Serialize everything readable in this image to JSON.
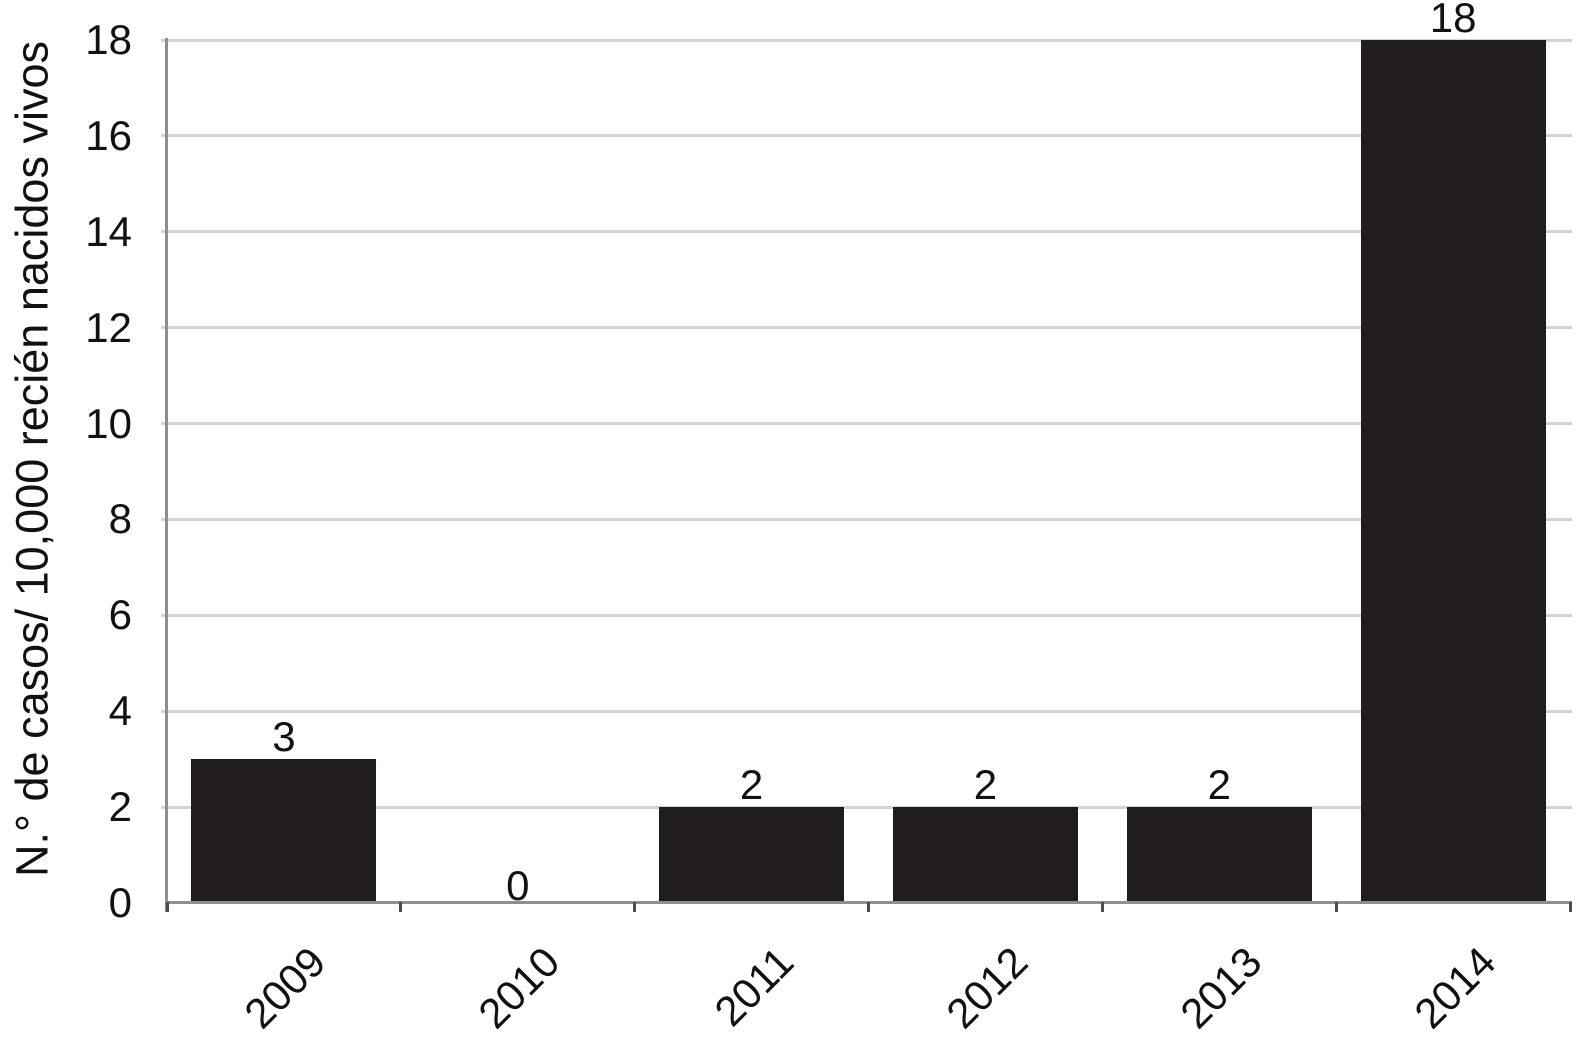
{
  "chart_data": {
    "type": "bar",
    "categories": [
      "2009",
      "2010",
      "2011",
      "2012",
      "2013",
      "2014"
    ],
    "values": [
      3,
      0,
      2,
      2,
      2,
      18
    ],
    "value_labels": [
      "3",
      "0",
      "2",
      "2",
      "2",
      "18"
    ],
    "title": "",
    "xlabel": "",
    "ylabel": "N.° de casos/ 10,000 recién nacidos vivos",
    "yticks": [
      0,
      2,
      4,
      6,
      8,
      10,
      12,
      14,
      16,
      18
    ],
    "ylim": [
      0,
      18
    ],
    "grid": "horizontal",
    "legend": "none",
    "colors": {
      "bar": "#211d1e",
      "gridline": "#d2d2d2",
      "axis": "#8f8f8f",
      "tick_mark": "#4d4d4d",
      "text": "#111111",
      "background": "#ffffff"
    }
  }
}
